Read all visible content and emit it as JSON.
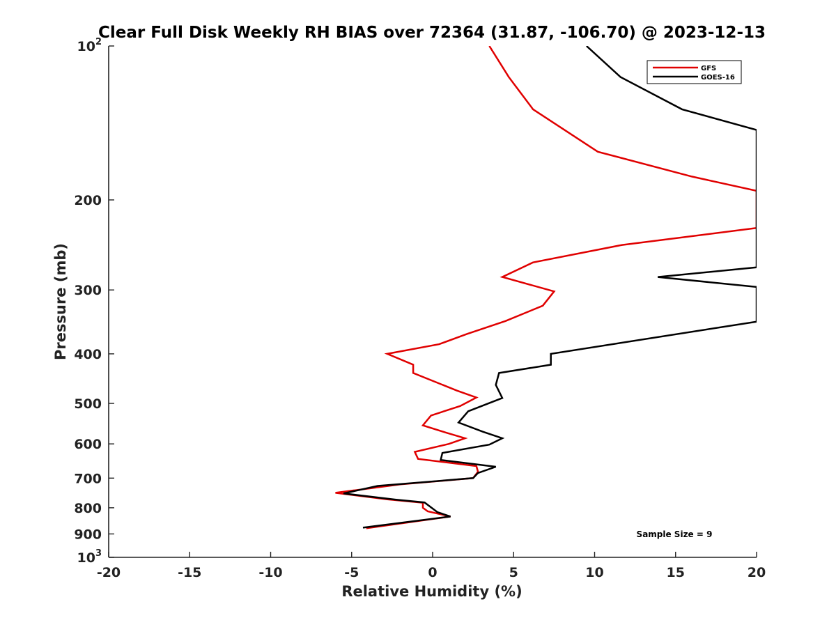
{
  "chart_data": {
    "type": "line",
    "title": "Clear Full Disk Weekly RH BIAS over 72364 (31.87, -106.70) @ 2023-12-13",
    "xlabel": "Relative Humidity (%)",
    "ylabel": "Pressure (mb)",
    "xlim": [
      -20,
      20
    ],
    "ylim": [
      100,
      1000
    ],
    "y_scale": "log",
    "y_reversed": true,
    "grid": false,
    "legend_position": "top-right",
    "x_ticks": [
      "-20",
      "-15",
      "-10",
      "-5",
      "0",
      "5",
      "10",
      "15",
      "20"
    ],
    "x_tick_values": [
      -20,
      -15,
      -10,
      -5,
      0,
      5,
      10,
      15,
      20
    ],
    "y_ticks": [
      {
        "value": 100,
        "base": "10",
        "exp": "2"
      },
      {
        "value": 200,
        "label": "200"
      },
      {
        "value": 300,
        "label": "300"
      },
      {
        "value": 400,
        "label": "400"
      },
      {
        "value": 500,
        "label": "500"
      },
      {
        "value": 600,
        "label": "600"
      },
      {
        "value": 700,
        "label": "700"
      },
      {
        "value": 800,
        "label": "800"
      },
      {
        "value": 900,
        "label": "900"
      },
      {
        "value": 1000,
        "base": "10",
        "exp": "3"
      }
    ],
    "annotation": "Sample Size = 9",
    "series": [
      {
        "name": "GFS",
        "color": "#e00000",
        "points": [
          [
            3.5,
            100
          ],
          [
            4.7,
            115
          ],
          [
            6.2,
            133
          ],
          [
            10.2,
            161
          ],
          [
            16,
            180
          ],
          [
            20,
            192
          ],
          [
            20,
            227
          ],
          [
            11.7,
            245
          ],
          [
            6.2,
            265
          ],
          [
            4.3,
            283
          ],
          [
            7.5,
            302
          ],
          [
            6.8,
            322
          ],
          [
            4.5,
            345
          ],
          [
            2.1,
            366
          ],
          [
            0.4,
            383
          ],
          [
            -2.8,
            400
          ],
          [
            -1.2,
            420
          ],
          [
            -1.2,
            436
          ],
          [
            1.5,
            472
          ],
          [
            2.7,
            487
          ],
          [
            1.7,
            506
          ],
          [
            -0.1,
            528
          ],
          [
            -0.6,
            552
          ],
          [
            0.8,
            570
          ],
          [
            2.0,
            585
          ],
          [
            1.0,
            600
          ],
          [
            -1.1,
            622
          ],
          [
            -0.9,
            642
          ],
          [
            2.7,
            663
          ],
          [
            2.8,
            680
          ],
          [
            2.5,
            700
          ],
          [
            -2.0,
            720
          ],
          [
            -6.0,
            748
          ],
          [
            -2.8,
            770
          ],
          [
            -0.6,
            782
          ],
          [
            -0.6,
            800
          ],
          [
            -0.3,
            813
          ],
          [
            1.1,
            832
          ],
          [
            -4.1,
            877
          ]
        ]
      },
      {
        "name": "GOES-16",
        "color": "#000000",
        "points": [
          [
            9.5,
            100
          ],
          [
            11.6,
            115
          ],
          [
            15.4,
            133
          ],
          [
            20,
            146
          ],
          [
            20,
            271
          ],
          [
            13.9,
            283
          ],
          [
            20,
            296
          ],
          [
            20,
            346
          ],
          [
            7.3,
            400
          ],
          [
            7.3,
            420
          ],
          [
            4.1,
            436
          ],
          [
            3.9,
            460
          ],
          [
            4.3,
            488
          ],
          [
            2.2,
            518
          ],
          [
            1.6,
            545
          ],
          [
            3.1,
            568
          ],
          [
            4.3,
            585
          ],
          [
            3.5,
            602
          ],
          [
            0.6,
            625
          ],
          [
            0.5,
            645
          ],
          [
            3.9,
            665
          ],
          [
            2.8,
            684
          ],
          [
            2.5,
            700
          ],
          [
            -3.4,
            725
          ],
          [
            -5.5,
            750
          ],
          [
            -2.3,
            771
          ],
          [
            -0.5,
            781
          ],
          [
            0.3,
            816
          ],
          [
            1.1,
            832
          ],
          [
            -4.3,
            875
          ]
        ]
      }
    ]
  }
}
